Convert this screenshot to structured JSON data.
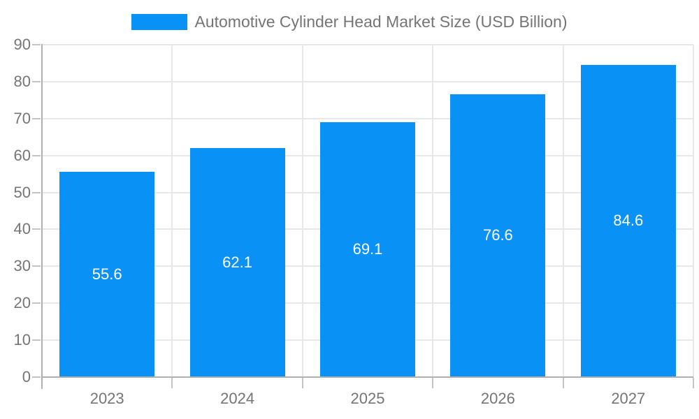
{
  "chart_data": {
    "type": "bar",
    "title": "Automotive Cylinder Head Market Size (USD Billion)",
    "categories": [
      "2023",
      "2024",
      "2025",
      "2026",
      "2027"
    ],
    "values": [
      55.6,
      62.1,
      69.1,
      76.6,
      84.6
    ],
    "ylim": [
      0,
      90
    ],
    "ytick_step": 10,
    "yticks": [
      "0",
      "10",
      "20",
      "30",
      "40",
      "50",
      "60",
      "70",
      "80",
      "90"
    ],
    "xlabel": "",
    "ylabel": "",
    "grid": true,
    "legend_position": "top",
    "value_labels": "inside-center",
    "colors": {
      "bar": "#0991f5",
      "value_label": "#ffffff",
      "axis_text": "#757575",
      "title_text": "#757575",
      "gridline": "#e8e8e8",
      "axis_line": "#b0b0b0",
      "tick": "#c4c4c4",
      "background": "#ffffff"
    }
  }
}
